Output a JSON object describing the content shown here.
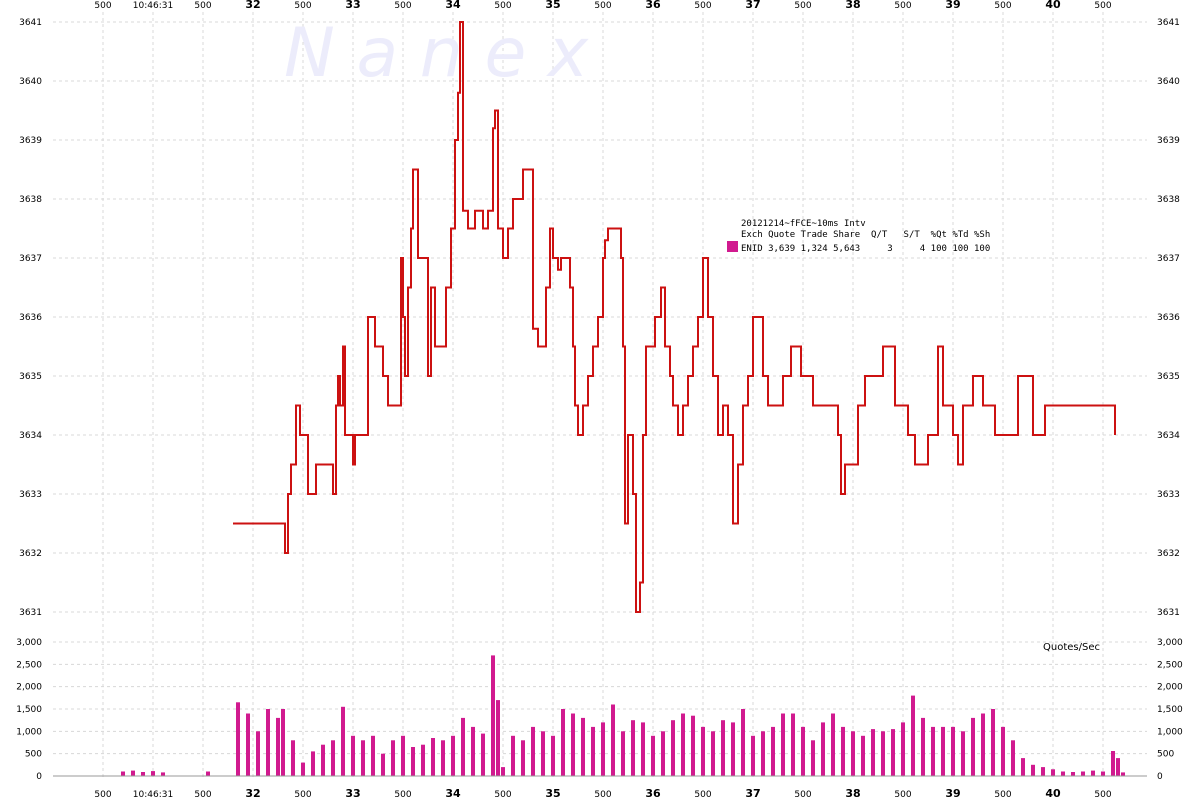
{
  "watermark": "N  a  n  e  x",
  "legend": {
    "title": "20121214~fFCE~10ms Intv",
    "header": "Exch Quote Trade Share  Q/T   S/T  %Qt %Td %Sh",
    "row": "ENID 3,639 1,324 5,643     3     4 100 100 100",
    "swatch_color": "#d11a8f"
  },
  "colors": {
    "price": "#cc1111",
    "volume": "#d11a8f",
    "grid": "#d8d8d8"
  },
  "chart_data": [
    {
      "type": "line",
      "title": "",
      "step": true,
      "xlabel": "",
      "ylabel": "",
      "ylim": [
        3630.5,
        3641
      ],
      "yticks": [
        3631,
        3632,
        3633,
        3634,
        3635,
        3636,
        3637,
        3638,
        3639,
        3640,
        3641
      ],
      "x_tick_labels": [
        "500",
        "10:46:31",
        "500",
        "32",
        "500",
        "33",
        "500",
        "34",
        "500",
        "35",
        "500",
        "36",
        "500",
        "37",
        "500",
        "38",
        "500",
        "39",
        "500",
        "40",
        "500"
      ],
      "series": [
        {
          "values": [
            [
              31.8,
              3632.5
            ],
            [
              32.3,
              3632.5
            ],
            [
              32.32,
              3632
            ],
            [
              32.35,
              3633
            ],
            [
              32.38,
              3633.5
            ],
            [
              32.43,
              3634.5
            ],
            [
              32.47,
              3634
            ],
            [
              32.52,
              3634
            ],
            [
              32.55,
              3633
            ],
            [
              32.63,
              3633.5
            ],
            [
              32.75,
              3633.5
            ],
            [
              32.8,
              3633
            ],
            [
              32.83,
              3634.5
            ],
            [
              32.85,
              3635
            ],
            [
              32.87,
              3634.5
            ],
            [
              32.9,
              3635.5
            ],
            [
              32.92,
              3634
            ],
            [
              32.95,
              3634
            ],
            [
              33.0,
              3633.5
            ],
            [
              33.02,
              3634
            ],
            [
              33.12,
              3634
            ],
            [
              33.15,
              3636
            ],
            [
              33.2,
              3636
            ],
            [
              33.22,
              3635.5
            ],
            [
              33.28,
              3635.5
            ],
            [
              33.3,
              3635
            ],
            [
              33.35,
              3634.5
            ],
            [
              33.4,
              3634.5
            ],
            [
              33.45,
              3634.5
            ],
            [
              33.48,
              3637
            ],
            [
              33.5,
              3636
            ],
            [
              33.52,
              3635
            ],
            [
              33.55,
              3636.5
            ],
            [
              33.58,
              3637.5
            ],
            [
              33.6,
              3638.5
            ],
            [
              33.65,
              3637
            ],
            [
              33.7,
              3637
            ],
            [
              33.75,
              3635
            ],
            [
              33.78,
              3636.5
            ],
            [
              33.82,
              3635.5
            ],
            [
              33.9,
              3635.5
            ],
            [
              33.93,
              3636.5
            ],
            [
              33.98,
              3637.5
            ],
            [
              34.02,
              3639
            ],
            [
              34.05,
              3639.8
            ],
            [
              34.07,
              3641
            ],
            [
              34.1,
              3637.8
            ],
            [
              34.15,
              3637.5
            ],
            [
              34.22,
              3637.8
            ],
            [
              34.3,
              3637.5
            ],
            [
              34.35,
              3637.8
            ],
            [
              34.4,
              3639.2
            ],
            [
              34.42,
              3639.5
            ],
            [
              34.45,
              3637.5
            ],
            [
              34.5,
              3637
            ],
            [
              34.55,
              3637.5
            ],
            [
              34.6,
              3638
            ],
            [
              34.7,
              3638.5
            ],
            [
              34.78,
              3638.5
            ],
            [
              34.8,
              3635.8
            ],
            [
              34.85,
              3635.5
            ],
            [
              34.9,
              3635.5
            ],
            [
              34.93,
              3636.5
            ],
            [
              34.97,
              3637.5
            ],
            [
              35.0,
              3637
            ],
            [
              35.05,
              3636.8
            ],
            [
              35.08,
              3637
            ],
            [
              35.12,
              3637
            ],
            [
              35.17,
              3636.5
            ],
            [
              35.2,
              3635.5
            ],
            [
              35.22,
              3634.5
            ],
            [
              35.25,
              3634
            ],
            [
              35.3,
              3634.5
            ],
            [
              35.35,
              3635
            ],
            [
              35.4,
              3635.5
            ],
            [
              35.45,
              3636
            ],
            [
              35.5,
              3637
            ],
            [
              35.52,
              3637.3
            ],
            [
              35.55,
              3637.5
            ],
            [
              35.6,
              3637.5
            ],
            [
              35.65,
              3637.5
            ],
            [
              35.68,
              3637
            ],
            [
              35.7,
              3635.5
            ],
            [
              35.72,
              3632.5
            ],
            [
              35.75,
              3634
            ],
            [
              35.8,
              3633
            ],
            [
              35.83,
              3631
            ],
            [
              35.87,
              3631.5
            ],
            [
              35.9,
              3634
            ],
            [
              35.93,
              3635.5
            ],
            [
              35.98,
              3635.5
            ],
            [
              36.02,
              3636
            ],
            [
              36.08,
              3636.5
            ],
            [
              36.12,
              3635.5
            ],
            [
              36.17,
              3635
            ],
            [
              36.2,
              3634.5
            ],
            [
              36.25,
              3634
            ],
            [
              36.3,
              3634.5
            ],
            [
              36.35,
              3635
            ],
            [
              36.4,
              3635.5
            ],
            [
              36.45,
              3636
            ],
            [
              36.5,
              3637
            ],
            [
              36.55,
              3636
            ],
            [
              36.6,
              3635
            ],
            [
              36.65,
              3634
            ],
            [
              36.7,
              3634.5
            ],
            [
              36.75,
              3634
            ],
            [
              36.8,
              3632.5
            ],
            [
              36.85,
              3633.5
            ],
            [
              36.9,
              3634.5
            ],
            [
              36.95,
              3635
            ],
            [
              37.0,
              3636
            ],
            [
              37.05,
              3636
            ],
            [
              37.1,
              3635
            ],
            [
              37.15,
              3634.5
            ],
            [
              37.2,
              3634.5
            ],
            [
              37.25,
              3634.5
            ],
            [
              37.3,
              3635
            ],
            [
              37.38,
              3635.5
            ],
            [
              37.43,
              3635.5
            ],
            [
              37.48,
              3635
            ],
            [
              37.55,
              3635
            ],
            [
              37.6,
              3634.5
            ],
            [
              37.7,
              3634.5
            ],
            [
              37.85,
              3634
            ],
            [
              37.88,
              3633
            ],
            [
              37.92,
              3633.5
            ],
            [
              37.97,
              3633.5
            ],
            [
              38.05,
              3634.5
            ],
            [
              38.12,
              3635
            ],
            [
              38.2,
              3635
            ],
            [
              38.3,
              3635.5
            ],
            [
              38.37,
              3635.5
            ],
            [
              38.42,
              3634.5
            ],
            [
              38.55,
              3634
            ],
            [
              38.62,
              3633.5
            ],
            [
              38.75,
              3634
            ],
            [
              38.85,
              3635.5
            ],
            [
              38.9,
              3634.5
            ],
            [
              39.0,
              3634
            ],
            [
              39.05,
              3633.5
            ],
            [
              39.1,
              3634.5
            ],
            [
              39.2,
              3635
            ],
            [
              39.3,
              3634.5
            ],
            [
              39.35,
              3634.5
            ],
            [
              39.42,
              3634
            ],
            [
              39.6,
              3634
            ],
            [
              39.65,
              3635
            ],
            [
              39.75,
              3635
            ],
            [
              39.8,
              3634
            ],
            [
              39.9,
              3634
            ],
            [
              39.92,
              3634.5
            ],
            [
              40.5,
              3634.5
            ],
            [
              40.62,
              3634
            ]
          ]
        }
      ]
    },
    {
      "type": "bar",
      "title": "",
      "xlabel": "",
      "ylabel": "Quotes/Sec",
      "ylim": [
        0,
        3000
      ],
      "yticks": [
        0,
        500,
        1000,
        1500,
        2000,
        2500,
        3000
      ],
      "ytick_labels": [
        "0",
        "500",
        "1,000",
        "1,500",
        "2,000",
        "2,500",
        "3,000"
      ],
      "series": [
        {
          "values": [
            [
              30.7,
              100
            ],
            [
              30.8,
              120
            ],
            [
              30.9,
              90
            ],
            [
              31.0,
              110
            ],
            [
              31.1,
              80
            ],
            [
              31.55,
              100
            ],
            [
              31.85,
              1650
            ],
            [
              31.95,
              1400
            ],
            [
              32.05,
              1000
            ],
            [
              32.15,
              1500
            ],
            [
              32.25,
              1300
            ],
            [
              32.3,
              1500
            ],
            [
              32.4,
              800
            ],
            [
              32.5,
              300
            ],
            [
              32.6,
              550
            ],
            [
              32.7,
              700
            ],
            [
              32.8,
              800
            ],
            [
              32.9,
              1550
            ],
            [
              33.0,
              900
            ],
            [
              33.1,
              800
            ],
            [
              33.2,
              900
            ],
            [
              33.3,
              500
            ],
            [
              33.4,
              800
            ],
            [
              33.5,
              900
            ],
            [
              33.6,
              650
            ],
            [
              33.7,
              700
            ],
            [
              33.8,
              850
            ],
            [
              33.9,
              800
            ],
            [
              34.0,
              900
            ],
            [
              34.1,
              1300
            ],
            [
              34.2,
              1100
            ],
            [
              34.3,
              950
            ],
            [
              34.4,
              2700
            ],
            [
              34.45,
              1700
            ],
            [
              34.5,
              200
            ],
            [
              34.6,
              900
            ],
            [
              34.7,
              800
            ],
            [
              34.8,
              1100
            ],
            [
              34.9,
              1000
            ],
            [
              35.0,
              900
            ],
            [
              35.1,
              1500
            ],
            [
              35.2,
              1400
            ],
            [
              35.3,
              1300
            ],
            [
              35.4,
              1100
            ],
            [
              35.5,
              1200
            ],
            [
              35.6,
              1600
            ],
            [
              35.7,
              1000
            ],
            [
              35.8,
              1250
            ],
            [
              35.9,
              1200
            ],
            [
              36.0,
              900
            ],
            [
              36.1,
              1000
            ],
            [
              36.2,
              1250
            ],
            [
              36.3,
              1400
            ],
            [
              36.4,
              1350
            ],
            [
              36.5,
              1100
            ],
            [
              36.6,
              1000
            ],
            [
              36.7,
              1250
            ],
            [
              36.8,
              1200
            ],
            [
              36.9,
              1500
            ],
            [
              37.0,
              900
            ],
            [
              37.1,
              1000
            ],
            [
              37.2,
              1100
            ],
            [
              37.3,
              1400
            ],
            [
              37.4,
              1400
            ],
            [
              37.5,
              1100
            ],
            [
              37.6,
              800
            ],
            [
              37.7,
              1200
            ],
            [
              37.8,
              1400
            ],
            [
              37.9,
              1100
            ],
            [
              38.0,
              1000
            ],
            [
              38.1,
              900
            ],
            [
              38.2,
              1050
            ],
            [
              38.3,
              1000
            ],
            [
              38.4,
              1050
            ],
            [
              38.5,
              1200
            ],
            [
              38.6,
              1800
            ],
            [
              38.7,
              1300
            ],
            [
              38.8,
              1100
            ],
            [
              38.9,
              1100
            ],
            [
              39.0,
              1100
            ],
            [
              39.1,
              1000
            ],
            [
              39.2,
              1300
            ],
            [
              39.3,
              1400
            ],
            [
              39.4,
              1500
            ],
            [
              39.5,
              1100
            ],
            [
              39.6,
              800
            ],
            [
              39.7,
              400
            ],
            [
              39.8,
              250
            ],
            [
              39.9,
              200
            ],
            [
              40.0,
              150
            ],
            [
              40.1,
              100
            ],
            [
              40.2,
              90
            ],
            [
              40.3,
              100
            ],
            [
              40.4,
              120
            ],
            [
              40.5,
              100
            ],
            [
              40.6,
              560
            ],
            [
              40.65,
              400
            ],
            [
              40.7,
              80
            ]
          ]
        }
      ]
    }
  ]
}
